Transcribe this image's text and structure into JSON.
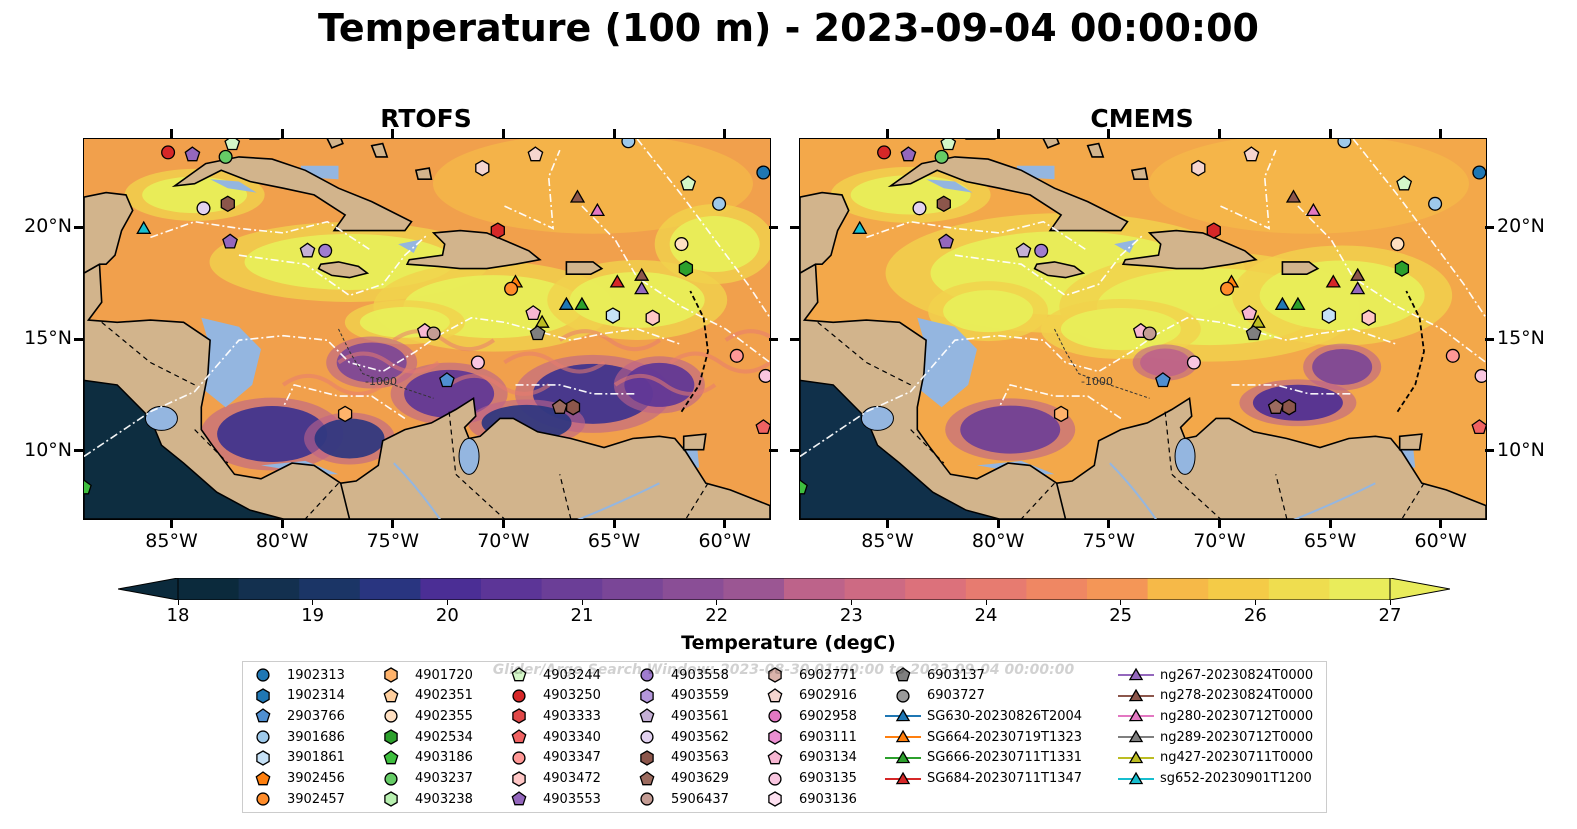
{
  "title": "Temperature (100 m) - 2023-09-04 00:00:00",
  "panels": [
    {
      "title": "RTOFS",
      "variant": "rtofs"
    },
    {
      "title": "CMEMS",
      "variant": "cmems"
    }
  ],
  "axes": {
    "lon_ticks": [
      "85°W",
      "80°W",
      "75°W",
      "70°W",
      "65°W",
      "60°W"
    ],
    "lat_ticks": [
      "20°N",
      "15°N",
      "10°N"
    ],
    "lon_range": [
      -89,
      -58
    ],
    "lat_range": [
      7,
      24
    ]
  },
  "colorbar": {
    "label": "Temperature (degC)",
    "ticks": [
      "18",
      "19",
      "20",
      "21",
      "22",
      "23",
      "24",
      "25",
      "26",
      "27"
    ],
    "vmin": 18,
    "vmax": 27,
    "extend": "both",
    "colors": [
      "#0b2a3c",
      "#13304f",
      "#1b3566",
      "#293580",
      "#3a318f",
      "#4b2e95",
      "#5c3597",
      "#6b3e97",
      "#7a4697",
      "#8a4e96",
      "#9b5693",
      "#ac5d8f",
      "#bd638a",
      "#cd6a83",
      "#dc717b",
      "#e77b70",
      "#ef8763",
      "#f49657",
      "#f6a74e",
      "#f6b948",
      "#f4cb47",
      "#efdd4f",
      "#e9ec5b"
    ]
  },
  "watermark": "Glider/Argo Search Window: 2023-08-30 01:00:00 to 2023-09-04 00:00:00",
  "legend": {
    "columns": [
      [
        {
          "label": "1902313",
          "shape": "circle",
          "color": "#1f77b4"
        },
        {
          "label": "1902314",
          "shape": "hexagon",
          "color": "#1f77b4"
        },
        {
          "label": "2903766",
          "shape": "pentagon",
          "color": "#4f8fd1"
        },
        {
          "label": "3901686",
          "shape": "circle",
          "color": "#9ec9ea"
        },
        {
          "label": "3901861",
          "shape": "hexagon",
          "color": "#c6e1f6"
        },
        {
          "label": "3902456",
          "shape": "pentagon",
          "color": "#ff7f0e"
        },
        {
          "label": "3902457",
          "shape": "circle",
          "color": "#ff8c2a"
        }
      ],
      [
        {
          "label": "4901720",
          "shape": "hexagon",
          "color": "#ffb36b"
        },
        {
          "label": "4902351",
          "shape": "pentagon",
          "color": "#ffcf9e"
        },
        {
          "label": "4902355",
          "shape": "circle",
          "color": "#ffe0c2"
        },
        {
          "label": "4902534",
          "shape": "hexagon",
          "color": "#2ca02c"
        },
        {
          "label": "4903186",
          "shape": "pentagon",
          "color": "#3fbf3f"
        },
        {
          "label": "4903237",
          "shape": "circle",
          "color": "#66cc66"
        },
        {
          "label": "4903238",
          "shape": "hexagon",
          "color": "#b8f0b0"
        }
      ],
      [
        {
          "label": "4903244",
          "shape": "pentagon",
          "color": "#d4f7c8"
        },
        {
          "label": "4903250",
          "shape": "circle",
          "color": "#d62728"
        },
        {
          "label": "4903333",
          "shape": "hexagon",
          "color": "#e04848"
        },
        {
          "label": "4903340",
          "shape": "pentagon",
          "color": "#f06262"
        },
        {
          "label": "4903347",
          "shape": "circle",
          "color": "#ff9896"
        },
        {
          "label": "4903472",
          "shape": "hexagon",
          "color": "#ffc7c6"
        },
        {
          "label": "4903553",
          "shape": "pentagon",
          "color": "#9467bd"
        }
      ],
      [
        {
          "label": "4903558",
          "shape": "circle",
          "color": "#a07ccf"
        },
        {
          "label": "4903559",
          "shape": "hexagon",
          "color": "#b497db"
        },
        {
          "label": "4903561",
          "shape": "pentagon",
          "color": "#c5b0d5"
        },
        {
          "label": "4903562",
          "shape": "circle",
          "color": "#e2d2f0"
        },
        {
          "label": "4903563",
          "shape": "hexagon",
          "color": "#8c564b"
        },
        {
          "label": "4903629",
          "shape": "pentagon",
          "color": "#9c6b5f"
        },
        {
          "label": "5906437",
          "shape": "circle",
          "color": "#c49c94"
        }
      ],
      [
        {
          "label": "6902771",
          "shape": "hexagon",
          "color": "#d9b3aa"
        },
        {
          "label": "6902916",
          "shape": "pentagon",
          "color": "#f5d5cf"
        },
        {
          "label": "6902958",
          "shape": "circle",
          "color": "#e377c2"
        },
        {
          "label": "6903111",
          "shape": "hexagon",
          "color": "#ec8fd2"
        },
        {
          "label": "6903134",
          "shape": "pentagon",
          "color": "#f7b6d2"
        },
        {
          "label": "6903135",
          "shape": "circle",
          "color": "#f9c6e0"
        },
        {
          "label": "6903136",
          "shape": "hexagon",
          "color": "#fde0f0"
        }
      ],
      [
        {
          "label": "6903137",
          "shape": "pentagon",
          "color": "#7f7f7f"
        },
        {
          "label": "6903727",
          "shape": "circle",
          "color": "#9a9a9a"
        },
        {
          "label": "SG630-20230826T2004",
          "shape": "triangle",
          "color": "#1f77b4",
          "line": true
        },
        {
          "label": "SG664-20230719T1323",
          "shape": "triangle",
          "color": "#ff7f0e",
          "line": true
        },
        {
          "label": "SG666-20230711T1331",
          "shape": "triangle",
          "color": "#2ca02c",
          "line": true
        },
        {
          "label": "SG684-20230711T1347",
          "shape": "triangle",
          "color": "#d62728",
          "line": true
        }
      ],
      [
        {
          "label": "ng267-20230824T0000",
          "shape": "triangle",
          "color": "#9467bd",
          "line": true
        },
        {
          "label": "ng278-20230824T0000",
          "shape": "triangle",
          "color": "#8c564b",
          "line": true
        },
        {
          "label": "ng280-20230712T0000",
          "shape": "triangle",
          "color": "#e377c2",
          "line": true
        },
        {
          "label": "ng289-20230712T0000",
          "shape": "triangle",
          "color": "#7f7f7f",
          "line": true
        },
        {
          "label": "ng427-20230711T0000",
          "shape": "triangle",
          "color": "#bcbd22",
          "line": true
        },
        {
          "label": "sg652-20230901T1200",
          "shape": "triangle",
          "color": "#17becf",
          "line": true
        }
      ]
    ]
  },
  "map_markers": [
    {
      "lon": -85.2,
      "lat": 23.4,
      "shape": "circle",
      "color": "#d62728"
    },
    {
      "lon": -84.1,
      "lat": 23.3,
      "shape": "pentagon",
      "color": "#9467bd"
    },
    {
      "lon": -82.6,
      "lat": 23.2,
      "shape": "circle",
      "color": "#66cc66"
    },
    {
      "lon": -82.3,
      "lat": 23.8,
      "shape": "pentagon",
      "color": "#d4f7c8"
    },
    {
      "lon": -83.6,
      "lat": 20.9,
      "shape": "circle",
      "color": "#e2d2f0"
    },
    {
      "lon": -82.5,
      "lat": 21.1,
      "shape": "hexagon",
      "color": "#8c564b"
    },
    {
      "lon": -82.4,
      "lat": 19.4,
      "shape": "pentagon",
      "color": "#9467bd"
    },
    {
      "lon": -78.9,
      "lat": 19.0,
      "shape": "pentagon",
      "color": "#c5b0d5"
    },
    {
      "lon": -78.1,
      "lat": 19.0,
      "shape": "circle",
      "color": "#a07ccf"
    },
    {
      "lon": -86.3,
      "lat": 20.0,
      "shape": "triangle",
      "color": "#17becf"
    },
    {
      "lon": -71.0,
      "lat": 22.7,
      "shape": "hexagon",
      "color": "#f5d5cf"
    },
    {
      "lon": -68.6,
      "lat": 23.3,
      "shape": "pentagon",
      "color": "#f5d5cf"
    },
    {
      "lon": -64.4,
      "lat": 23.9,
      "shape": "circle",
      "color": "#9ec9ea"
    },
    {
      "lon": -58.3,
      "lat": 22.5,
      "shape": "circle",
      "color": "#1f77b4"
    },
    {
      "lon": -61.7,
      "lat": 22.0,
      "shape": "pentagon",
      "color": "#d4f7c8"
    },
    {
      "lon": -60.3,
      "lat": 21.1,
      "shape": "circle",
      "color": "#9ec9ea"
    },
    {
      "lon": -66.7,
      "lat": 21.4,
      "shape": "triangle",
      "color": "#8c564b"
    },
    {
      "lon": -65.8,
      "lat": 20.8,
      "shape": "triangle",
      "color": "#e377c2"
    },
    {
      "lon": -70.3,
      "lat": 19.9,
      "shape": "hexagon",
      "color": "#d62728"
    },
    {
      "lon": -62.0,
      "lat": 19.3,
      "shape": "circle",
      "color": "#ffe0c2"
    },
    {
      "lon": -61.8,
      "lat": 18.2,
      "shape": "hexagon",
      "color": "#2ca02c"
    },
    {
      "lon": -69.5,
      "lat": 17.6,
      "shape": "triangle",
      "color": "#ff7f0e"
    },
    {
      "lon": -69.7,
      "lat": 17.3,
      "shape": "circle",
      "color": "#ff8c2a"
    },
    {
      "lon": -64.9,
      "lat": 17.6,
      "shape": "triangle",
      "color": "#d62728"
    },
    {
      "lon": -63.8,
      "lat": 17.9,
      "shape": "triangle",
      "color": "#8c564b"
    },
    {
      "lon": -63.8,
      "lat": 17.3,
      "shape": "triangle",
      "color": "#9467bd"
    },
    {
      "lon": -67.2,
      "lat": 16.6,
      "shape": "triangle",
      "color": "#1f77b4"
    },
    {
      "lon": -66.5,
      "lat": 16.6,
      "shape": "triangle",
      "color": "#2ca02c"
    },
    {
      "lon": -65.1,
      "lat": 16.1,
      "shape": "hexagon",
      "color": "#c6e1f6"
    },
    {
      "lon": -63.3,
      "lat": 16.0,
      "shape": "hexagon",
      "color": "#ffc7c6"
    },
    {
      "lon": -68.7,
      "lat": 16.2,
      "shape": "pentagon",
      "color": "#f7b6d2"
    },
    {
      "lon": -68.3,
      "lat": 15.8,
      "shape": "triangle",
      "color": "#bcbd22"
    },
    {
      "lon": -68.5,
      "lat": 15.3,
      "shape": "pentagon",
      "color": "#7f7f7f"
    },
    {
      "lon": -73.6,
      "lat": 15.4,
      "shape": "pentagon",
      "color": "#f7b6d2"
    },
    {
      "lon": -73.2,
      "lat": 15.3,
      "shape": "circle",
      "color": "#c49c94"
    },
    {
      "lon": -71.2,
      "lat": 14.0,
      "shape": "circle",
      "color": "#f9c6e0"
    },
    {
      "lon": -72.6,
      "lat": 13.2,
      "shape": "pentagon",
      "color": "#4f8fd1"
    },
    {
      "lon": -59.5,
      "lat": 14.3,
      "shape": "circle",
      "color": "#ff9896"
    },
    {
      "lon": -58.2,
      "lat": 13.4,
      "shape": "circle",
      "color": "#f9c6e0"
    },
    {
      "lon": -66.9,
      "lat": 12.0,
      "shape": "hexagon",
      "color": "#8c564b"
    },
    {
      "lon": -67.5,
      "lat": 12.0,
      "shape": "pentagon",
      "color": "#9c6b5f"
    },
    {
      "lon": -77.2,
      "lat": 11.7,
      "shape": "hexagon",
      "color": "#ffb36b"
    },
    {
      "lon": -58.3,
      "lat": 11.1,
      "shape": "pentagon",
      "color": "#f06262"
    },
    {
      "lon": -89.0,
      "lat": 8.4,
      "shape": "pentagon",
      "color": "#3fbf3f"
    }
  ]
}
